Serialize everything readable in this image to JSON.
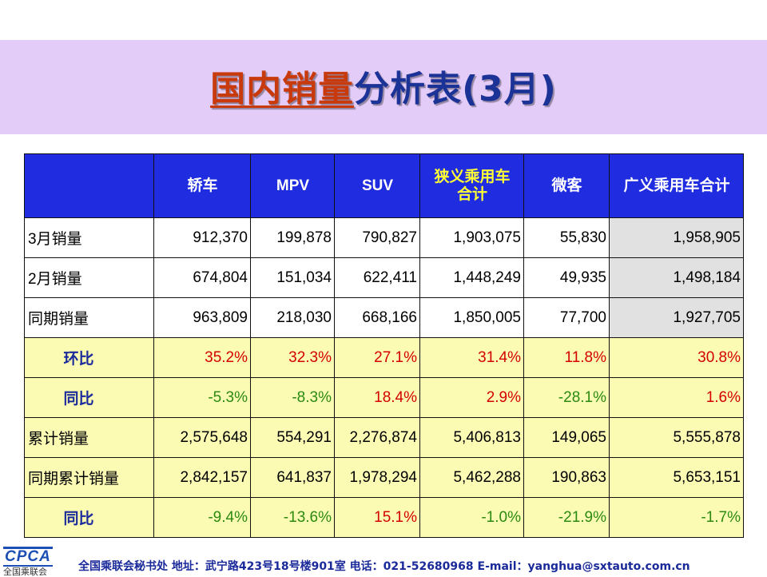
{
  "title": {
    "part1": "国内销量",
    "part2": "分析表(3月)"
  },
  "table": {
    "headers": [
      "",
      "轿车",
      "MPV",
      "SUV",
      "狭义乘用车合计",
      "微客",
      "广义乘用车合计"
    ],
    "rows": [
      {
        "label": "3月销量",
        "cells": [
          "912,370",
          "199,878",
          "790,827",
          "1,903,075",
          "55,830",
          "1,958,905"
        ]
      },
      {
        "label": "2月销量",
        "cells": [
          "674,804",
          "151,034",
          "622,411",
          "1,448,249",
          "49,935",
          "1,498,184"
        ]
      },
      {
        "label": "同期销量",
        "cells": [
          "963,809",
          "218,030",
          "668,166",
          "1,850,005",
          "77,700",
          "1,927,705"
        ]
      },
      {
        "label": "环比",
        "cells": [
          "35.2%",
          "32.3%",
          "27.1%",
          "31.4%",
          "11.8%",
          "30.8%"
        ]
      },
      {
        "label": "同比",
        "cells": [
          "-5.3%",
          "-8.3%",
          "18.4%",
          "2.9%",
          "-28.1%",
          "1.6%"
        ]
      },
      {
        "label": "累计销量",
        "cells": [
          "2,575,648",
          "554,291",
          "2,276,874",
          "5,406,813",
          "149,065",
          "5,555,878"
        ]
      },
      {
        "label": "同期累计销量",
        "cells": [
          "2,842,157",
          "641,837",
          "1,978,294",
          "5,462,288",
          "190,863",
          "5,653,151"
        ]
      },
      {
        "label": "同比",
        "cells": [
          "-9.4%",
          "-13.6%",
          "15.1%",
          "-1.0%",
          "-21.9%",
          "-1.7%"
        ]
      }
    ]
  },
  "footer": {
    "logo_text": "CPCA",
    "logo_subtitle": "全国乘联会",
    "contact": "全国乘联会秘书处  地址：武宁路423号18号楼901室    电话：021-52680968   E-mail：yanghua@sxtauto.com.cn"
  },
  "colors": {
    "header_bg": "#1f2ce0",
    "title_band": "#e3ccf8",
    "highlight_row": "#fbfbb4",
    "positive": "#d40000",
    "negative": "#2c8a10"
  }
}
